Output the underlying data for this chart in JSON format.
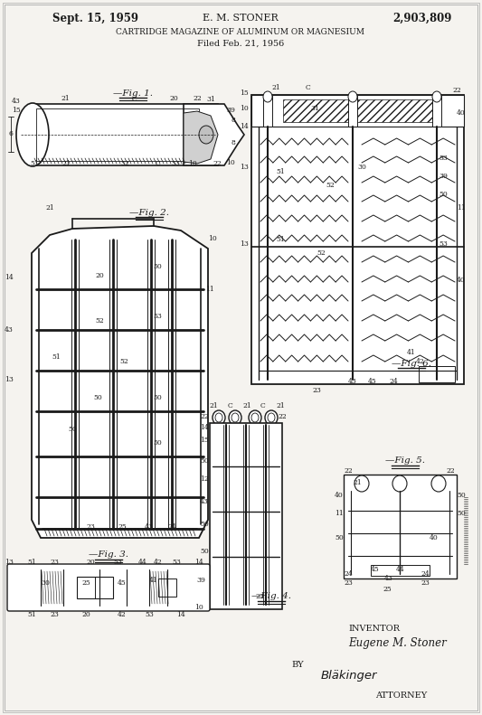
{
  "bg_color": "#e8e5e0",
  "paper_color": "#f5f3ef",
  "line_color": "#1a1a1a",
  "header": {
    "date": "Sept. 15, 1959",
    "inventor": "E. M. STONER",
    "patent_num": "2,903,809",
    "title": "CARTRIDGE MAGAZINE OF ALUMINUM OR MAGNESIUM",
    "filed": "Filed Feb. 21, 1956"
  },
  "footer": {
    "inventor_label": "INVENTOR",
    "inventor_name": "Eugene M. Stoner",
    "by_label": "BY",
    "attorney_label": "ATTORNEY"
  }
}
